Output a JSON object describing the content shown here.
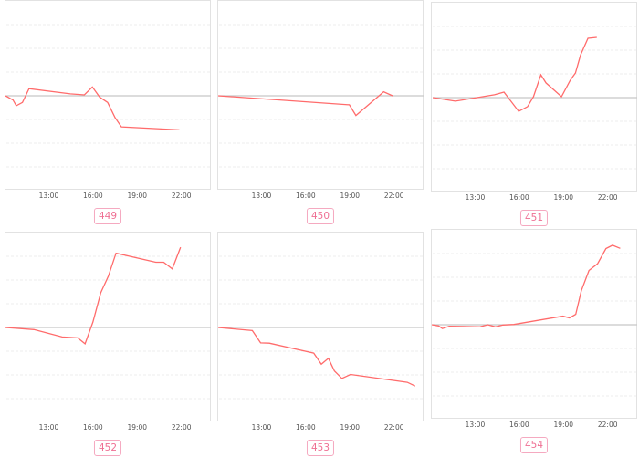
{
  "style": {
    "line_color": "#ff6b6b",
    "label_color": "#ef6f93",
    "label_border": "#f5a9c0",
    "baseline_color": "#c8c8c8",
    "grid_color": "#eeeeee"
  },
  "chart_data": [
    {
      "type": "line",
      "label": "449",
      "x_ticks": [
        "13:00",
        "16:00",
        "19:00",
        "22:00"
      ],
      "xlim": [
        "10:00",
        "24:00"
      ],
      "ylim": [
        -4,
        4
      ],
      "grid": true,
      "points": [
        [
          "10:00",
          0
        ],
        [
          "10:31",
          -0.18
        ],
        [
          "10:44",
          -0.42
        ],
        [
          "11:09",
          -0.28
        ],
        [
          "11:36",
          0.3
        ],
        [
          "14:24",
          0.08
        ],
        [
          "15:21",
          0.04
        ],
        [
          "15:54",
          0.37
        ],
        [
          "16:24",
          -0.06
        ],
        [
          "16:56",
          -0.28
        ],
        [
          "17:26",
          -0.92
        ],
        [
          "17:52",
          -1.31
        ],
        [
          "21:48",
          -1.44
        ]
      ]
    },
    {
      "type": "line",
      "label": "450",
      "x_ticks": [
        "13:00",
        "16:00",
        "19:00",
        "22:00"
      ],
      "xlim": [
        "10:00",
        "24:00"
      ],
      "ylim": [
        -4,
        4
      ],
      "grid": true,
      "points": [
        [
          "10:00",
          0
        ],
        [
          "18:54",
          -0.38
        ],
        [
          "19:21",
          -0.83
        ],
        [
          "21:14",
          0.17
        ],
        [
          "21:50",
          0
        ]
      ]
    },
    {
      "type": "line",
      "label": "451",
      "x_ticks": [
        "13:00",
        "16:00",
        "19:00",
        "22:00"
      ],
      "xlim": [
        "10:00",
        "24:00"
      ],
      "ylim": [
        -4,
        4
      ],
      "grid": true,
      "points": [
        [
          "10:04",
          0
        ],
        [
          "11:36",
          -0.15
        ],
        [
          "14:15",
          0.12
        ],
        [
          "14:54",
          0.23
        ],
        [
          "15:54",
          -0.58
        ],
        [
          "16:30",
          -0.38
        ],
        [
          "16:54",
          0.04
        ],
        [
          "17:24",
          0.96
        ],
        [
          "17:45",
          0.62
        ],
        [
          "18:48",
          0.04
        ],
        [
          "19:24",
          0.73
        ],
        [
          "19:45",
          1.04
        ],
        [
          "20:06",
          1.8
        ],
        [
          "20:36",
          2.5
        ],
        [
          "21:12",
          2.54
        ]
      ]
    },
    {
      "type": "line",
      "label": "452",
      "x_ticks": [
        "13:00",
        "16:00",
        "19:00",
        "22:00"
      ],
      "xlim": [
        "10:00",
        "24:00"
      ],
      "ylim": [
        -4,
        4
      ],
      "grid": true,
      "points": [
        [
          "10:00",
          0
        ],
        [
          "11:56",
          -0.09
        ],
        [
          "13:51",
          -0.4
        ],
        [
          "14:54",
          -0.44
        ],
        [
          "15:24",
          -0.69
        ],
        [
          "15:56",
          0.23
        ],
        [
          "16:28",
          1.47
        ],
        [
          "16:59",
          2.16
        ],
        [
          "17:30",
          3.13
        ],
        [
          "20:12",
          2.75
        ],
        [
          "20:44",
          2.75
        ],
        [
          "21:19",
          2.47
        ],
        [
          "21:53",
          3.38
        ]
      ]
    },
    {
      "type": "line",
      "label": "453",
      "x_ticks": [
        "13:00",
        "16:00",
        "19:00",
        "22:00"
      ],
      "xlim": [
        "10:00",
        "24:00"
      ],
      "ylim": [
        -4,
        4
      ],
      "grid": true,
      "points": [
        [
          "10:00",
          0
        ],
        [
          "12:19",
          -0.13
        ],
        [
          "12:53",
          -0.65
        ],
        [
          "13:28",
          -0.66
        ],
        [
          "16:29",
          -1.08
        ],
        [
          "17:00",
          -1.55
        ],
        [
          "17:29",
          -1.3
        ],
        [
          "17:53",
          -1.83
        ],
        [
          "18:24",
          -2.15
        ],
        [
          "18:59",
          -1.98
        ],
        [
          "22:50",
          -2.31
        ],
        [
          "23:22",
          -2.47
        ]
      ]
    },
    {
      "type": "line",
      "label": "454",
      "x_ticks": [
        "13:00",
        "16:00",
        "19:00",
        "22:00"
      ],
      "xlim": [
        "10:00",
        "24:00"
      ],
      "ylim": [
        -4,
        4
      ],
      "grid": true,
      "points": [
        [
          "10:00",
          0
        ],
        [
          "10:28",
          -0.05
        ],
        [
          "10:43",
          -0.16
        ],
        [
          "11:11",
          -0.06
        ],
        [
          "13:16",
          -0.09
        ],
        [
          "13:48",
          0
        ],
        [
          "14:19",
          -0.09
        ],
        [
          "14:50",
          -0.01
        ],
        [
          "15:34",
          0.01
        ],
        [
          "18:54",
          0.36
        ],
        [
          "19:21",
          0.29
        ],
        [
          "19:46",
          0.44
        ],
        [
          "20:09",
          1.43
        ],
        [
          "20:40",
          2.29
        ],
        [
          "21:15",
          2.57
        ],
        [
          "21:49",
          3.21
        ],
        [
          "22:16",
          3.35
        ],
        [
          "22:47",
          3.22
        ]
      ]
    }
  ]
}
